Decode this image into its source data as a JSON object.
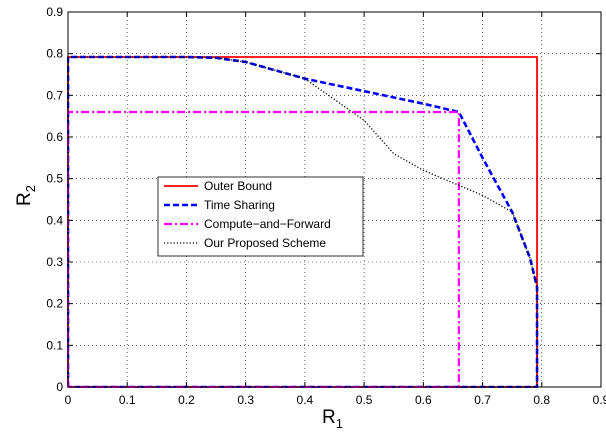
{
  "chart_data": {
    "type": "line",
    "xlabel": "R",
    "xlabel_sub": "1",
    "ylabel": "R",
    "ylabel_sub": "2",
    "xlim": [
      0,
      0.9
    ],
    "ylim": [
      0,
      0.9
    ],
    "xticks": [
      "0",
      "0.1",
      "0.2",
      "0.3",
      "0.4",
      "0.5",
      "0.6",
      "0.7",
      "0.8",
      "0.9"
    ],
    "yticks": [
      "0",
      "0.1",
      "0.2",
      "0.3",
      "0.4",
      "0.5",
      "0.6",
      "0.7",
      "0.8",
      "0.9"
    ],
    "xtick_values": [
      0,
      0.1,
      0.2,
      0.3,
      0.4,
      0.5,
      0.6,
      0.7,
      0.8,
      0.9
    ],
    "ytick_values": [
      0,
      0.1,
      0.2,
      0.3,
      0.4,
      0.5,
      0.6,
      0.7,
      0.8,
      0.9
    ],
    "grid": true,
    "legend_position": "center-left",
    "series": [
      {
        "name": "Outer Bound",
        "color": "#ff0000",
        "style": "solid",
        "points": [
          [
            0,
            0
          ],
          [
            0,
            0.792
          ],
          [
            0.792,
            0.792
          ],
          [
            0.792,
            0
          ],
          [
            0,
            0
          ]
        ]
      },
      {
        "name": "Time Sharing",
        "color": "#0000ff",
        "style": "dashed",
        "points": [
          [
            0,
            0
          ],
          [
            0,
            0.792
          ],
          [
            0.2,
            0.792
          ],
          [
            0.25,
            0.79
          ],
          [
            0.3,
            0.78
          ],
          [
            0.35,
            0.76
          ],
          [
            0.4,
            0.74
          ],
          [
            0.5,
            0.71
          ],
          [
            0.6,
            0.68
          ],
          [
            0.66,
            0.66
          ],
          [
            0.7,
            0.55
          ],
          [
            0.75,
            0.42
          ],
          [
            0.78,
            0.31
          ],
          [
            0.792,
            0.24
          ],
          [
            0.792,
            0
          ],
          [
            0,
            0
          ]
        ]
      },
      {
        "name": "Compute−and−Forward",
        "color": "#ff00ff",
        "style": "dashdot",
        "points": [
          [
            0,
            0
          ],
          [
            0,
            0.66
          ],
          [
            0.66,
            0.66
          ],
          [
            0.66,
            0
          ],
          [
            0,
            0
          ]
        ]
      },
      {
        "name": "Our Proposed Scheme",
        "color": "#000000",
        "style": "dotted",
        "points": [
          [
            0,
            0
          ],
          [
            0,
            0.792
          ],
          [
            0.2,
            0.792
          ],
          [
            0.25,
            0.79
          ],
          [
            0.3,
            0.78
          ],
          [
            0.35,
            0.76
          ],
          [
            0.4,
            0.74
          ],
          [
            0.5,
            0.64
          ],
          [
            0.55,
            0.56
          ],
          [
            0.6,
            0.52
          ],
          [
            0.65,
            0.49
          ],
          [
            0.7,
            0.46
          ],
          [
            0.75,
            0.42
          ],
          [
            0.78,
            0.31
          ],
          [
            0.792,
            0.24
          ],
          [
            0.792,
            0
          ],
          [
            0,
            0
          ]
        ]
      }
    ]
  }
}
